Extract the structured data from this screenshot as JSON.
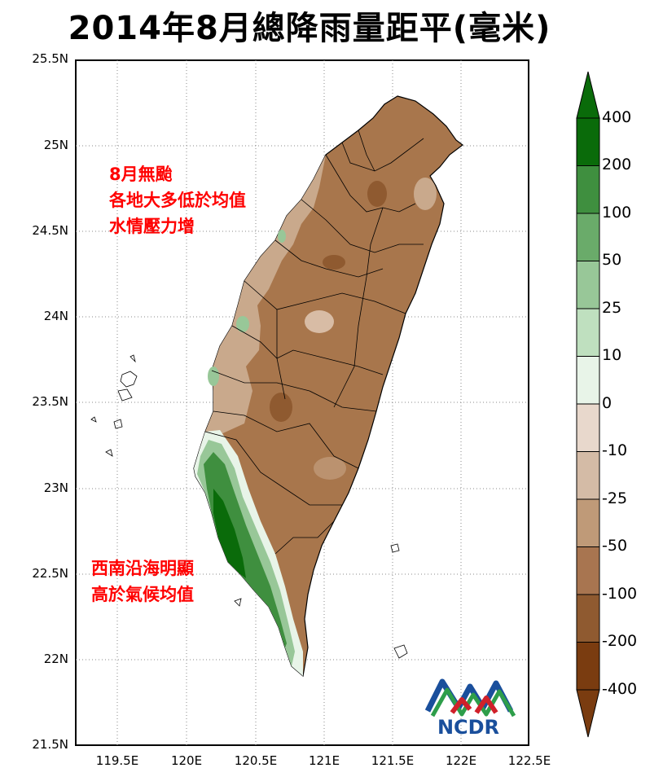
{
  "title": "2014年8月總降雨量距平(毫米)",
  "axes": {
    "y_ticks": [
      "25.5N",
      "25N",
      "24.5N",
      "24N",
      "23.5N",
      "23N",
      "22.5N",
      "22N",
      "21.5N"
    ],
    "x_ticks": [
      "119.5E",
      "120E",
      "120.5E",
      "121E",
      "121.5E",
      "122E",
      "122.5E"
    ]
  },
  "annotations": {
    "north": [
      "8月無颱",
      "各地大多低於均值",
      "水情壓力增"
    ],
    "south": [
      "西南沿海明顯",
      "高於氣候均值"
    ]
  },
  "colorbar": {
    "labels": [
      "400",
      "200",
      "100",
      "50",
      "25",
      "10",
      "0",
      "-10",
      "-25",
      "-50",
      "-100",
      "-200",
      "-400"
    ],
    "colors": [
      "#0a6b0a",
      "#3f8f3f",
      "#6aab6a",
      "#98c798",
      "#bfe0bf",
      "#e8f4e8",
      "#f8f4ee",
      "#e8d8cc",
      "#d4bba6",
      "#bf9a78",
      "#a87550",
      "#8f5a30",
      "#7a3c10"
    ]
  },
  "logo": {
    "text": "NCDR"
  }
}
